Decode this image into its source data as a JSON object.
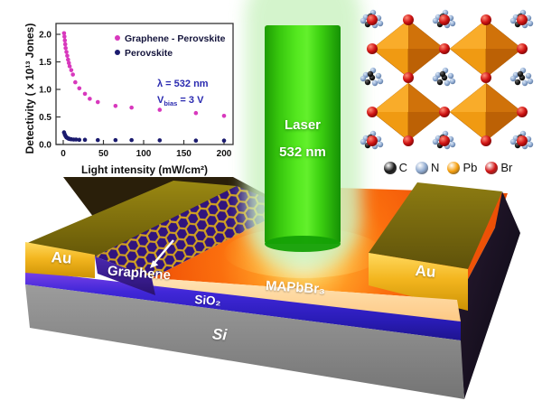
{
  "chart_data": {
    "type": "scatter",
    "title": "",
    "xlabel": "Light intensity (mW/cm²)",
    "ylabel": "Detectivity ( x 10¹³ Jones)",
    "xlim": [
      -8,
      215
    ],
    "ylim": [
      0,
      2.15
    ],
    "xticks": [
      0,
      50,
      100,
      150,
      200
    ],
    "yticks": [
      0.0,
      0.5,
      1.0,
      1.5,
      2.0
    ],
    "grid": false,
    "legend_position": "top-right-inside",
    "annotations": [
      "λ = 532 nm",
      "V_bias = 3 V"
    ],
    "annotation_color": "#2a2ab0",
    "series": [
      {
        "name": "Graphene - Perovskite",
        "color": "#d838bd",
        "x": [
          1,
          1.5,
          2,
          2.5,
          3,
          4,
          5,
          6,
          7,
          8,
          10,
          12,
          15,
          20,
          27,
          33,
          43,
          65,
          85,
          120,
          165,
          200
        ],
        "y": [
          2.02,
          1.96,
          1.89,
          1.82,
          1.75,
          1.68,
          1.61,
          1.54,
          1.48,
          1.42,
          1.35,
          1.27,
          1.13,
          1.02,
          0.92,
          0.83,
          0.77,
          0.7,
          0.67,
          0.63,
          0.57,
          0.52
        ]
      },
      {
        "name": "Perovskite",
        "color": "#1b1b6f",
        "x": [
          1,
          2,
          3,
          4,
          5,
          6,
          7,
          8,
          10,
          13,
          16,
          20,
          27,
          43,
          65,
          85,
          120,
          165,
          200
        ],
        "y": [
          0.22,
          0.18,
          0.15,
          0.13,
          0.12,
          0.11,
          0.105,
          0.1,
          0.095,
          0.09,
          0.09,
          0.085,
          0.085,
          0.08,
          0.08,
          0.08,
          0.075,
          0.07,
          0.07
        ]
      }
    ]
  },
  "laser": {
    "line1": "Laser",
    "line2": "532 nm"
  },
  "crystal": {
    "legend": [
      {
        "label": "C",
        "color": "#1a1a1a"
      },
      {
        "label": "N",
        "color": "#8ea9cf"
      },
      {
        "label": "Pb",
        "color": "#f59e0b"
      },
      {
        "label": "Br",
        "color": "#cf1313"
      }
    ]
  },
  "device": {
    "electrode_left": "Au",
    "electrode_right": "Au",
    "graphene": "Graphene",
    "perovskite": "MAPbBr₃",
    "oxide": "SiO₂",
    "substrate": "Si"
  },
  "colors": {
    "laser_green": "#3fd412",
    "perovskite_orange": "#f26a0e",
    "gold": "#f3b61f",
    "oxide_blue": "#3a23cf",
    "substrate_gray": "#8a8a8a",
    "graphene_purple": "#31147e",
    "octahedra_orange": "#e8860d"
  }
}
